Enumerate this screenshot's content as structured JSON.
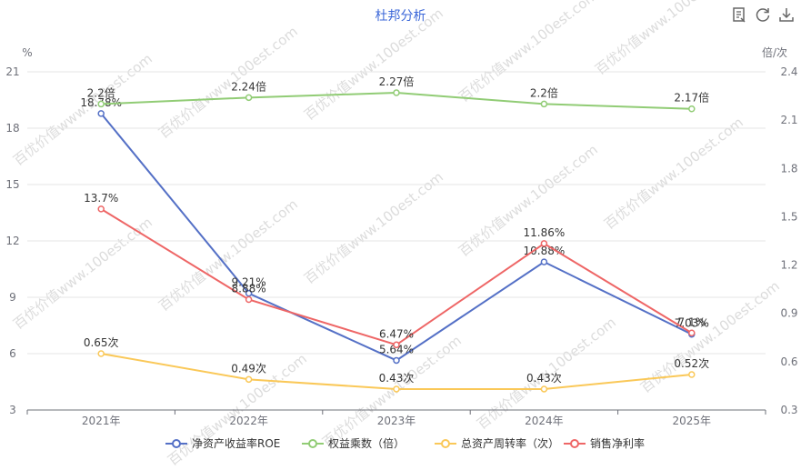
{
  "title": "杜邦分析",
  "toolbar": [
    {
      "name": "data-view-icon"
    },
    {
      "name": "refresh-icon"
    },
    {
      "name": "download-icon"
    }
  ],
  "watermark": "百优价值www.100est.com",
  "chart_data": {
    "type": "line",
    "categories": [
      "2021年",
      "2022年",
      "2023年",
      "2024年",
      "2025年"
    ],
    "y_left": {
      "unit": "%",
      "min": 3,
      "max": 21,
      "ticks": [
        "3",
        "6",
        "9",
        "12",
        "15",
        "18",
        "21"
      ]
    },
    "y_right": {
      "unit": "倍/次",
      "min": 0.3,
      "max": 2.4,
      "ticks": [
        "0.3",
        "0.6",
        "0.9",
        "1.2",
        "1.5",
        "1.8",
        "2.1",
        "2.4"
      ]
    },
    "series": [
      {
        "name": "净资产收益率ROE",
        "axis": "left",
        "color": "#5470c6",
        "values": [
          18.78,
          9.21,
          5.64,
          10.88,
          7.03
        ],
        "labels": [
          "18.78%",
          "9.21%",
          "5.64%",
          "10.88%",
          "7.03%"
        ]
      },
      {
        "name": "权益乘数（倍）",
        "axis": "right",
        "color": "#91cc75",
        "values": [
          2.2,
          2.24,
          2.27,
          2.2,
          2.17
        ],
        "labels": [
          "2.2倍",
          "2.24倍",
          "2.27倍",
          "2.2倍",
          "2.17倍"
        ]
      },
      {
        "name": "总资产周转率（次）",
        "axis": "right",
        "color": "#fac858",
        "values": [
          0.65,
          0.49,
          0.43,
          0.43,
          0.52
        ],
        "labels": [
          "0.65次",
          "0.49次",
          "0.43次",
          "0.43次",
          "0.52次"
        ]
      },
      {
        "name": "销售净利率",
        "axis": "left",
        "color": "#ee6666",
        "values": [
          13.7,
          8.88,
          6.47,
          11.86,
          7.1
        ],
        "labels": [
          "13.7%",
          "8.88%",
          "6.47%",
          "11.86%",
          "7.1%"
        ]
      }
    ],
    "grid": true,
    "legend": "bottom"
  }
}
